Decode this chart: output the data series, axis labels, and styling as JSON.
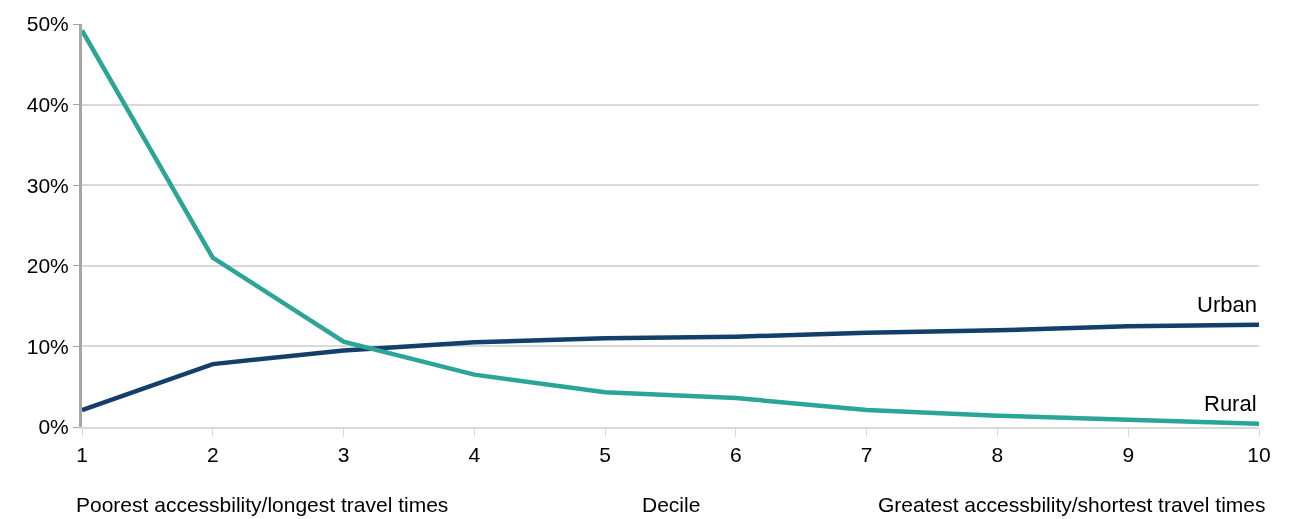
{
  "chart_data": {
    "type": "line",
    "x": [
      1,
      2,
      3,
      4,
      5,
      6,
      7,
      8,
      9,
      10
    ],
    "series": [
      {
        "name": "Urban",
        "color": "#133f6a",
        "values": [
          2.1,
          7.8,
          9.5,
          10.5,
          11.0,
          11.2,
          11.7,
          12.0,
          12.5,
          12.7
        ]
      },
      {
        "name": "Rural",
        "color": "#2aa597",
        "values": [
          49.2,
          21.0,
          10.6,
          6.5,
          4.3,
          3.6,
          2.1,
          1.4,
          0.9,
          0.4
        ]
      }
    ],
    "xlabel": "Decile",
    "annotations": [
      "Poorest accessbility/longest travel times",
      "Greatest accessbility/shortest travel times"
    ],
    "xlim": [
      1,
      10
    ],
    "xticks": [
      1,
      2,
      3,
      4,
      5,
      6,
      7,
      8,
      9,
      10
    ],
    "ylim": [
      0,
      50
    ],
    "yticks": [
      {
        "value": 0,
        "label": "0%"
      },
      {
        "value": 10,
        "label": "10%"
      },
      {
        "value": 20,
        "label": "20%"
      },
      {
        "value": 30,
        "label": "30%"
      },
      {
        "value": 40,
        "label": "40%"
      },
      {
        "value": 50,
        "label": "50%"
      }
    ],
    "grid": "y",
    "legend": false,
    "marker": "none",
    "line_style": "solid"
  }
}
